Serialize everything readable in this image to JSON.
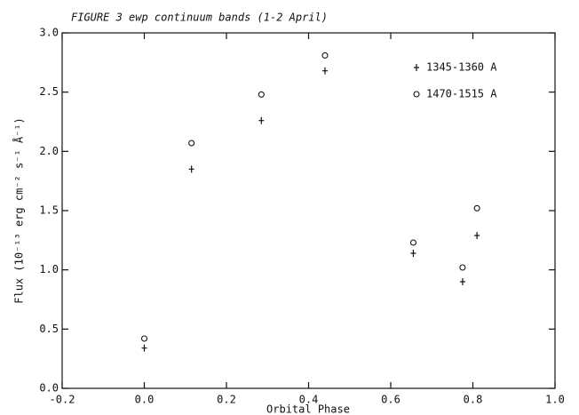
{
  "chart_data": {
    "type": "scatter",
    "title": "FIGURE 3 ewp continuum bands (1-2 April)",
    "xlabel": "Orbital Phase",
    "ylabel": "Flux (10⁻¹³ erg cm⁻² s⁻¹ Å⁻¹)",
    "xlim": [
      -0.2,
      1.0
    ],
    "ylim": [
      0,
      3
    ],
    "xticks": [
      -0.2,
      {
        "value": 0,
        "label": "0.0"
      },
      0.2,
      0.4,
      0.6,
      0.8,
      {
        "value": 1,
        "label": "1.0"
      }
    ],
    "yticks": [
      {
        "value": 0,
        "label": "0.0"
      },
      0.5,
      {
        "value": 1,
        "label": "1.0"
      },
      1.5,
      {
        "value": 2,
        "label": "2.0"
      },
      2.5,
      {
        "value": 3,
        "label": "3.0"
      }
    ],
    "series": [
      {
        "name": "1345-1360 A",
        "marker": "+",
        "color": "#111111",
        "x": [
          0.0,
          0.115,
          0.285,
          0.44,
          0.655,
          0.775,
          0.81
        ],
        "values": [
          0.34,
          1.85,
          2.26,
          2.68,
          1.14,
          0.9,
          1.29
        ]
      },
      {
        "name": "1470-1515 A",
        "marker": "o",
        "color": "#111111",
        "x": [
          0.0,
          0.115,
          0.285,
          0.44,
          0.655,
          0.775,
          0.81
        ],
        "values": [
          0.42,
          2.07,
          2.48,
          2.81,
          1.23,
          1.02,
          1.52
        ]
      }
    ]
  }
}
